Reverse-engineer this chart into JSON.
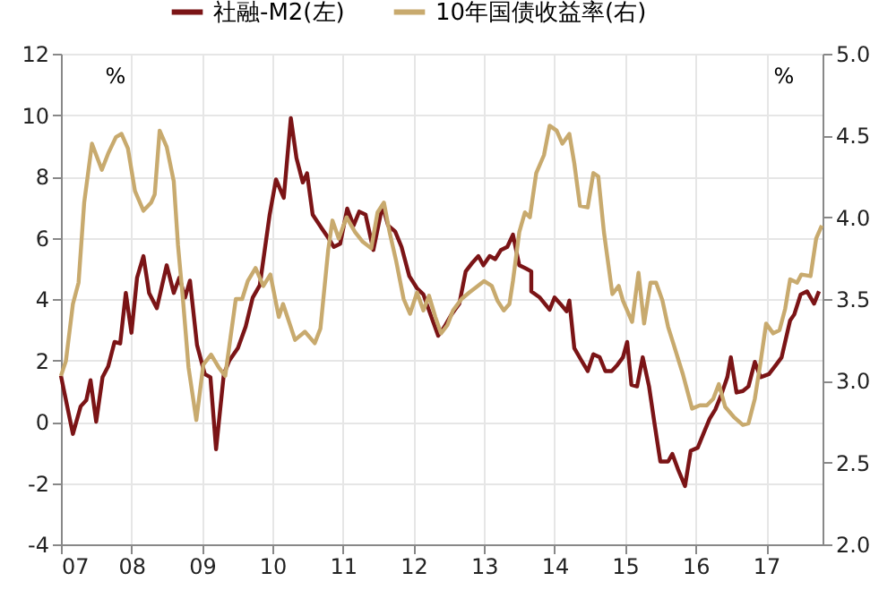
{
  "chart_data": {
    "type": "line",
    "legend": "top",
    "grid": true,
    "line_style": "solid",
    "marker": "none",
    "ylabel": "%",
    "y2label": "%",
    "xlim": [
      2007,
      2017.8
    ],
    "xticks": [
      {
        "value": 2007,
        "label": "07"
      },
      {
        "value": 2008,
        "label": "08"
      },
      {
        "value": 2009,
        "label": "09"
      },
      {
        "value": 2010,
        "label": "10"
      },
      {
        "value": 2011,
        "label": "11"
      },
      {
        "value": 2012,
        "label": "12"
      },
      {
        "value": 2013,
        "label": "13"
      },
      {
        "value": 2014,
        "label": "14"
      },
      {
        "value": 2015,
        "label": "15"
      },
      {
        "value": 2016,
        "label": "16"
      },
      {
        "value": 2017,
        "label": "17"
      }
    ],
    "ylim": [
      -4,
      12
    ],
    "yticks": [
      -4,
      -2,
      0,
      2,
      4,
      6,
      8,
      10,
      12
    ],
    "y2lim": [
      2,
      5
    ],
    "y2ticks": [
      {
        "value": 2,
        "label": "2.0"
      },
      {
        "value": 2.5,
        "label": "2.5"
      },
      {
        "value": 3,
        "label": "3.0"
      },
      {
        "value": 3.5,
        "label": "3.5"
      },
      {
        "value": 4,
        "label": "4.0"
      },
      {
        "value": 4.5,
        "label": "4.5"
      },
      {
        "value": 5,
        "label": "5.0"
      }
    ],
    "series": [
      {
        "name": "社融-M2(左)",
        "color": "#7b1416",
        "x": [
          2007.0,
          2007.17,
          2007.28,
          2007.36,
          2007.42,
          2007.5,
          2007.59,
          2007.67,
          2007.76,
          2007.84,
          2007.92,
          2008.0,
          2008.08,
          2008.17,
          2008.25,
          2008.36,
          2008.5,
          2008.6,
          2008.68,
          2008.76,
          2008.83,
          2008.93,
          2009.04,
          2009.12,
          2009.2,
          2009.31,
          2009.39,
          2009.51,
          2009.62,
          2009.72,
          2009.82,
          2009.96,
          2010.05,
          2010.16,
          2010.26,
          2010.34,
          2010.43,
          2010.49,
          2010.57,
          2010.7,
          2010.79,
          2010.87,
          2010.96,
          2011.06,
          2011.15,
          2011.23,
          2011.32,
          2011.43,
          2011.56,
          2011.64,
          2011.74,
          2011.83,
          2011.94,
          2012.05,
          2012.14,
          2012.24,
          2012.35,
          2012.44,
          2012.54,
          2012.65,
          2012.74,
          2012.84,
          2012.92,
          2012.99,
          2013.08,
          2013.16,
          2013.24,
          2013.33,
          2013.41,
          2013.5,
          2013.59,
          2013.67,
          2013.67,
          2013.79,
          2013.93,
          2014.0,
          2014.08,
          2014.17,
          2014.21,
          2014.28,
          2014.38,
          2014.47,
          2014.55,
          2014.64,
          2014.72,
          2014.81,
          2014.89,
          2014.97,
          2015.03,
          2015.09,
          2015.17,
          2015.25,
          2015.34,
          2015.42,
          2015.5,
          2015.61,
          2015.67,
          2015.75,
          2015.85,
          2015.93,
          2016.03,
          2016.11,
          2016.2,
          2016.28,
          2016.36,
          2016.45,
          2016.5,
          2016.58,
          2016.67,
          2016.75,
          2016.84,
          2016.92,
          2017.04,
          2017.14,
          2017.22,
          2017.34,
          2017.4,
          2017.49,
          2017.58,
          2017.68,
          2017.75
        ],
        "values": [
          1.5,
          -0.4,
          0.5,
          0.7,
          1.35,
          0,
          1.45,
          1.8,
          2.6,
          2.55,
          4.2,
          2.9,
          4.7,
          5.4,
          4.2,
          3.7,
          5.1,
          4.2,
          4.7,
          4.05,
          4.6,
          2.5,
          1.55,
          1.45,
          -0.9,
          1.55,
          2.0,
          2.4,
          3.1,
          4.05,
          4.45,
          6.75,
          7.9,
          7.3,
          9.9,
          8.6,
          7.8,
          8.1,
          6.75,
          6.3,
          6.0,
          5.7,
          5.8,
          6.95,
          6.4,
          6.85,
          6.75,
          5.6,
          7.05,
          6.4,
          6.2,
          5.7,
          4.75,
          4.35,
          4.15,
          3.5,
          2.8,
          3.1,
          3.5,
          3.85,
          4.9,
          5.2,
          5.4,
          5.1,
          5.4,
          5.3,
          5.6,
          5.7,
          6.1,
          5.1,
          5.0,
          4.9,
          4.25,
          4.05,
          3.65,
          4.05,
          3.85,
          3.6,
          3.95,
          2.4,
          2.0,
          1.65,
          2.2,
          2.1,
          1.65,
          1.65,
          1.85,
          2.1,
          2.6,
          1.2,
          1.15,
          2.1,
          1.15,
          -0.1,
          -1.3,
          -1.3,
          -1.05,
          -1.55,
          -2.1,
          -0.95,
          -0.85,
          -0.4,
          0.1,
          0.4,
          0.85,
          1.45,
          2.1,
          0.95,
          1.0,
          1.15,
          1.95,
          1.45,
          1.55,
          1.85,
          2.1,
          3.3,
          3.5,
          4.15,
          4.25,
          3.85,
          4.25
        ]
      },
      {
        "name": "10年国债收益率(右)",
        "color": "#c8aa6e",
        "axis": "y2",
        "x": [
          2007.0,
          2007.07,
          2007.17,
          2007.25,
          2007.33,
          2007.44,
          2007.58,
          2007.67,
          2007.78,
          2007.86,
          2007.95,
          2008.05,
          2008.17,
          2008.28,
          2008.33,
          2008.4,
          2008.5,
          2008.6,
          2008.66,
          2008.73,
          2008.81,
          2008.92,
          2009.02,
          2009.13,
          2009.24,
          2009.33,
          2009.4,
          2009.48,
          2009.57,
          2009.65,
          2009.76,
          2009.87,
          2009.97,
          2010.09,
          2010.15,
          2010.32,
          2010.46,
          2010.6,
          2010.68,
          2010.79,
          2010.85,
          2010.94,
          2011.05,
          2011.17,
          2011.28,
          2011.4,
          2011.49,
          2011.58,
          2011.66,
          2011.75,
          2011.86,
          2011.95,
          2012.05,
          2012.14,
          2012.22,
          2012.31,
          2012.39,
          2012.48,
          2012.56,
          2012.68,
          2012.79,
          2012.91,
          2013.0,
          2013.11,
          2013.19,
          2013.28,
          2013.36,
          2013.41,
          2013.5,
          2013.58,
          2013.65,
          2013.74,
          2013.85,
          2013.93,
          2014.03,
          2014.11,
          2014.21,
          2014.28,
          2014.36,
          2014.47,
          2014.55,
          2014.62,
          2014.7,
          2014.82,
          2014.91,
          2014.97,
          2015.1,
          2015.19,
          2015.27,
          2015.36,
          2015.44,
          2015.53,
          2015.61,
          2015.69,
          2015.82,
          2015.95,
          2016.06,
          2016.16,
          2016.25,
          2016.33,
          2016.42,
          2016.54,
          2016.67,
          2016.75,
          2016.84,
          2016.92,
          2017.0,
          2017.1,
          2017.19,
          2017.27,
          2017.34,
          2017.44,
          2017.5,
          2017.63,
          2017.71,
          2017.79
        ],
        "values": [
          3.03,
          3.12,
          3.47,
          3.6,
          4.09,
          4.45,
          4.29,
          4.39,
          4.49,
          4.51,
          4.42,
          4.16,
          4.04,
          4.09,
          4.14,
          4.53,
          4.43,
          4.22,
          3.83,
          3.5,
          3.08,
          2.76,
          3.1,
          3.16,
          3.08,
          3.03,
          3.25,
          3.5,
          3.5,
          3.61,
          3.69,
          3.58,
          3.65,
          3.39,
          3.47,
          3.25,
          3.3,
          3.23,
          3.32,
          3.8,
          3.98,
          3.87,
          4.0,
          3.91,
          3.85,
          3.81,
          4.03,
          4.09,
          3.91,
          3.74,
          3.5,
          3.41,
          3.54,
          3.43,
          3.52,
          3.39,
          3.29,
          3.34,
          3.43,
          3.5,
          3.54,
          3.58,
          3.61,
          3.58,
          3.49,
          3.43,
          3.47,
          3.61,
          3.91,
          4.03,
          4.0,
          4.27,
          4.38,
          4.56,
          4.53,
          4.45,
          4.51,
          4.33,
          4.07,
          4.06,
          4.27,
          4.25,
          3.91,
          3.53,
          3.58,
          3.49,
          3.36,
          3.66,
          3.35,
          3.6,
          3.6,
          3.49,
          3.33,
          3.22,
          3.04,
          2.83,
          2.85,
          2.85,
          2.89,
          2.98,
          2.84,
          2.78,
          2.73,
          2.74,
          2.89,
          3.11,
          3.35,
          3.29,
          3.31,
          3.44,
          3.62,
          3.6,
          3.65,
          3.64,
          3.87,
          3.95
        ]
      }
    ]
  }
}
